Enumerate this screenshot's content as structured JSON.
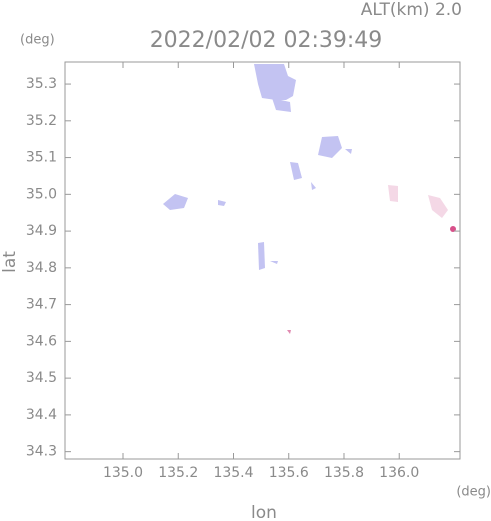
{
  "chart_data": {
    "type": "map",
    "title": "2022/02/02 02:39:49",
    "subtitle": "ALT(km) 2.0",
    "y_unit": "(deg)",
    "x_unit": "(deg)",
    "x_label": "lon",
    "y_label": "lat",
    "xlim": [
      134.79,
      136.22
    ],
    "ylim": [
      34.28,
      35.36
    ],
    "xticks": [
      {
        "value": 135.0,
        "label": "135.0"
      },
      135.2,
      135.4,
      135.6,
      135.8,
      {
        "value": 136.0,
        "label": "136.0"
      }
    ],
    "yticks": [
      34.3,
      34.4,
      34.5,
      34.6,
      34.7,
      34.8,
      34.9,
      {
        "value": 35.0,
        "label": "35.0"
      },
      35.1,
      35.2,
      35.3
    ]
  }
}
